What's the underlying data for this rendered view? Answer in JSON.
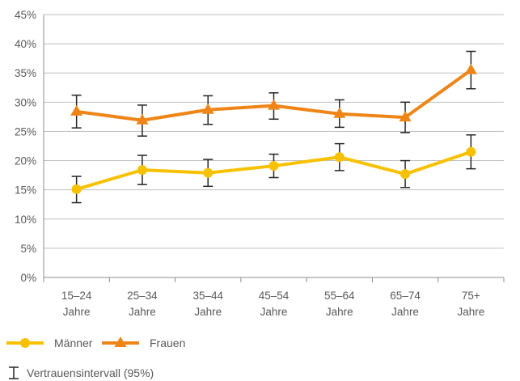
{
  "chart_data": {
    "type": "line",
    "categories": [
      [
        "15–24",
        "Jahre"
      ],
      [
        "25–34",
        "Jahre"
      ],
      [
        "35–44",
        "Jahre"
      ],
      [
        "45–54",
        "Jahre"
      ],
      [
        "55–64",
        "Jahre"
      ],
      [
        "65–74",
        "Jahre"
      ],
      [
        "75+",
        "Jahre"
      ]
    ],
    "ylim": [
      0,
      45
    ],
    "yticks": [
      0,
      5,
      10,
      15,
      20,
      25,
      30,
      35,
      40,
      45
    ],
    "ytick_labels": [
      "0%",
      "5%",
      "10%",
      "15%",
      "20%",
      "25%",
      "30%",
      "35%",
      "40%",
      "45%"
    ],
    "grid": true,
    "legend_position": "bottom-left",
    "series": [
      {
        "name": "Männer",
        "color": "#F8C100",
        "marker": "circle",
        "values": [
          15.1,
          18.4,
          17.9,
          19.1,
          20.6,
          17.7,
          21.5
        ],
        "ci_low": [
          12.8,
          15.9,
          15.6,
          17.1,
          18.3,
          15.4,
          18.6
        ],
        "ci_high": [
          17.3,
          20.9,
          20.2,
          21.1,
          22.9,
          20.0,
          24.4
        ]
      },
      {
        "name": "Frauen",
        "color": "#EE8516",
        "marker": "triangle",
        "values": [
          28.4,
          26.9,
          28.7,
          29.4,
          28.0,
          27.4,
          35.5
        ],
        "ci_low": [
          25.6,
          24.2,
          26.2,
          27.1,
          25.7,
          24.8,
          32.3
        ],
        "ci_high": [
          31.2,
          29.5,
          31.1,
          31.6,
          30.4,
          30.0,
          38.7
        ]
      }
    ],
    "ci_legend": "Vertrauensintervall (95%)"
  }
}
